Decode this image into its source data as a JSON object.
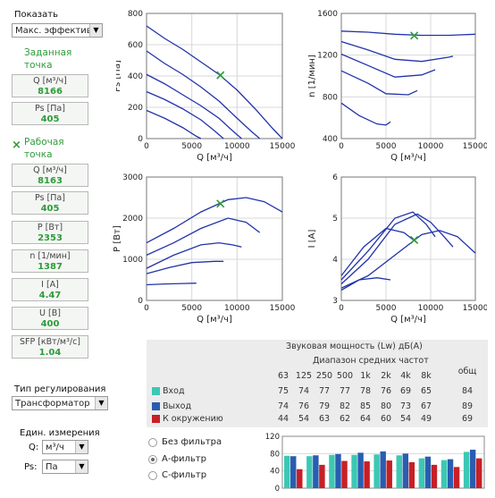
{
  "sidebar": {
    "show_label": "Показать",
    "show_select": "Макс. эффективн",
    "set_point_title_1": "Заданная",
    "set_point_title_2": "точка",
    "set_point": [
      {
        "label": "Q [м³/ч]",
        "value": "8166"
      },
      {
        "label": "Ps [Па]",
        "value": "405"
      }
    ],
    "work_point_marker": "×",
    "work_point_title_1": "Рабочая",
    "work_point_title_2": "точка",
    "work_point": [
      {
        "label": "Q [м³/ч]",
        "value": "8163"
      },
      {
        "label": "Ps [Па]",
        "value": "405"
      },
      {
        "label": "P [Вт]",
        "value": "2353"
      },
      {
        "label": "n [1/мин]",
        "value": "1387"
      },
      {
        "label": "I [А]",
        "value": "4.47"
      },
      {
        "label": "U [В]",
        "value": "400"
      },
      {
        "label": "SFP [кВт/м³/с]",
        "value": "1.04"
      }
    ],
    "regulation_label": "Тип регулирования",
    "regulation_select": "Трансформатор",
    "units_label_1": "Един. измерения",
    "units_q_label": "Q:",
    "units_q_select": "м³/ч",
    "units_ps_label": "Ps:",
    "units_ps_select": "Па"
  },
  "charts": {
    "ps": {
      "ylabel": "Ps [Па]",
      "xlabel": "Q [м³/ч]",
      "yticks": [
        "800",
        "600",
        "400",
        "200",
        "0"
      ],
      "xticks": [
        "0",
        "5000",
        "10000",
        "15000"
      ]
    },
    "n": {
      "ylabel": "n [1/мин]",
      "xlabel": "Q [м³/ч]",
      "yticks": [
        "1600",
        "1200",
        "800",
        "400"
      ],
      "xticks": [
        "0",
        "5000",
        "10000",
        "15000"
      ]
    },
    "p": {
      "ylabel": "P [Вт]",
      "xlabel": "Q [м³/ч]",
      "yticks": [
        "3000",
        "2000",
        "1000",
        "0"
      ],
      "xticks": [
        "0",
        "5000",
        "10000",
        "15000"
      ]
    },
    "i": {
      "ylabel": "I [А]",
      "xlabel": "Q [м³/ч]",
      "yticks": [
        "6",
        "5",
        "4",
        "3"
      ],
      "xticks": [
        "0",
        "5000",
        "10000",
        "15000"
      ]
    }
  },
  "sound": {
    "title": "Звуковая мощность (Lw) дБ(А)",
    "subtitle": "Диапазон средних частот",
    "freqs": [
      "63",
      "125",
      "250",
      "500",
      "1k",
      "2k",
      "4k",
      "8k"
    ],
    "total_label": "общ",
    "rows": [
      {
        "name": "Вход",
        "color": "#3cc8b4",
        "values": [
          "75",
          "74",
          "77",
          "77",
          "78",
          "76",
          "69",
          "65"
        ],
        "total": "84"
      },
      {
        "name": "Выход",
        "color": "#2a5db0",
        "values": [
          "74",
          "76",
          "79",
          "82",
          "85",
          "80",
          "73",
          "67"
        ],
        "total": "89"
      },
      {
        "name": "К окружению",
        "color": "#c81f26",
        "values": [
          "44",
          "54",
          "63",
          "62",
          "64",
          "60",
          "54",
          "49"
        ],
        "total": "69"
      }
    ]
  },
  "filters": [
    {
      "label": "Без фильтра",
      "selected": false
    },
    {
      "label": "А-фильтр",
      "selected": true
    },
    {
      "label": "С-фильтр",
      "selected": false
    }
  ],
  "bar_chart": {
    "yticks": [
      "120",
      "80",
      "40",
      "0"
    ]
  },
  "chart_data": [
    {
      "type": "line",
      "xlabel": "Q [м³/ч]",
      "ylabel": "Ps [Па]",
      "xlim": [
        0,
        15000
      ],
      "ylim": [
        0,
        800
      ],
      "series": [
        {
          "x": [
            0,
            2000,
            4000,
            6000,
            8000,
            10000,
            12000,
            14000,
            15000
          ],
          "y": [
            720,
            640,
            570,
            490,
            410,
            310,
            190,
            60,
            0
          ]
        },
        {
          "x": [
            0,
            2000,
            4000,
            6000,
            8000,
            10000,
            11500,
            12500
          ],
          "y": [
            560,
            480,
            410,
            330,
            240,
            130,
            50,
            0
          ]
        },
        {
          "x": [
            0,
            2000,
            4000,
            6000,
            8000,
            9500,
            10500
          ],
          "y": [
            410,
            350,
            280,
            210,
            130,
            50,
            0
          ]
        },
        {
          "x": [
            0,
            2000,
            4000,
            6000,
            7500,
            8500
          ],
          "y": [
            300,
            250,
            190,
            120,
            50,
            0
          ]
        },
        {
          "x": [
            0,
            2000,
            4000,
            5500,
            6000
          ],
          "y": [
            180,
            130,
            70,
            15,
            0
          ]
        }
      ],
      "marker": {
        "x": 8163,
        "y": 405
      }
    },
    {
      "type": "line",
      "xlabel": "Q [м³/ч]",
      "ylabel": "n [1/мин]",
      "xlim": [
        0,
        15000
      ],
      "ylim": [
        400,
        1600
      ],
      "series": [
        {
          "x": [
            0,
            3000,
            6000,
            9000,
            12000,
            15000
          ],
          "y": [
            1430,
            1420,
            1400,
            1390,
            1390,
            1400
          ]
        },
        {
          "x": [
            0,
            3000,
            6000,
            9000,
            12000,
            12500
          ],
          "y": [
            1330,
            1250,
            1160,
            1140,
            1180,
            1190
          ]
        },
        {
          "x": [
            0,
            3000,
            6000,
            9000,
            10500
          ],
          "y": [
            1210,
            1100,
            990,
            1010,
            1060
          ]
        },
        {
          "x": [
            0,
            3000,
            5000,
            7500,
            8500
          ],
          "y": [
            1050,
            930,
            830,
            820,
            860
          ]
        },
        {
          "x": [
            0,
            2000,
            4000,
            5000,
            5500
          ],
          "y": [
            740,
            620,
            540,
            530,
            560
          ]
        }
      ],
      "marker": {
        "x": 8163,
        "y": 1387
      }
    },
    {
      "type": "line",
      "xlabel": "Q [м³/ч]",
      "ylabel": "P [Вт]",
      "xlim": [
        0,
        15000
      ],
      "ylim": [
        0,
        3000
      ],
      "series": [
        {
          "x": [
            0,
            3000,
            6000,
            9000,
            11000,
            13000,
            15000
          ],
          "y": [
            1400,
            1750,
            2150,
            2450,
            2500,
            2400,
            2150
          ]
        },
        {
          "x": [
            0,
            3000,
            6000,
            9000,
            11000,
            12500
          ],
          "y": [
            1100,
            1400,
            1750,
            2000,
            1900,
            1650
          ]
        },
        {
          "x": [
            0,
            3000,
            6000,
            8000,
            9500,
            10500
          ],
          "y": [
            780,
            1100,
            1350,
            1400,
            1350,
            1300
          ]
        },
        {
          "x": [
            0,
            2500,
            5000,
            7500,
            8500
          ],
          "y": [
            650,
            800,
            920,
            950,
            950
          ]
        },
        {
          "x": [
            0,
            2000,
            4000,
            5500
          ],
          "y": [
            380,
            400,
            410,
            420
          ]
        }
      ],
      "marker": {
        "x": 8163,
        "y": 2353
      }
    },
    {
      "type": "line",
      "xlabel": "Q [м³/ч]",
      "ylabel": "I [А]",
      "xlim": [
        0,
        15000
      ],
      "ylim": [
        3,
        6
      ],
      "series": [
        {
          "x": [
            0,
            3000,
            6000,
            9000,
            11000,
            13000,
            15000
          ],
          "y": [
            3.3,
            3.6,
            4.1,
            4.6,
            4.7,
            4.55,
            4.15
          ]
        },
        {
          "x": [
            0,
            3000,
            6000,
            8500,
            10000,
            11500,
            12500
          ],
          "y": [
            3.4,
            4.0,
            4.85,
            5.1,
            4.9,
            4.55,
            4.3
          ]
        },
        {
          "x": [
            0,
            3000,
            6000,
            8000,
            9500,
            10500
          ],
          "y": [
            3.5,
            4.2,
            5.0,
            5.15,
            4.85,
            4.55
          ]
        },
        {
          "x": [
            0,
            2500,
            5000,
            7000,
            8500
          ],
          "y": [
            3.6,
            4.3,
            4.75,
            4.65,
            4.4
          ]
        },
        {
          "x": [
            0,
            2000,
            4000,
            5500
          ],
          "y": [
            3.25,
            3.5,
            3.55,
            3.5
          ]
        }
      ],
      "marker": {
        "x": 8163,
        "y": 4.47
      }
    },
    {
      "type": "bar",
      "categories": [
        "63",
        "125",
        "250",
        "500",
        "1k",
        "2k",
        "4k",
        "8k",
        "общ"
      ],
      "ylim": [
        0,
        120
      ],
      "series": [
        {
          "name": "Вход",
          "values": [
            75,
            74,
            77,
            77,
            78,
            76,
            69,
            65,
            84
          ]
        },
        {
          "name": "Выход",
          "values": [
            74,
            76,
            79,
            82,
            85,
            80,
            73,
            67,
            89
          ]
        },
        {
          "name": "К окружению",
          "values": [
            44,
            54,
            63,
            62,
            64,
            60,
            54,
            49,
            69
          ]
        }
      ]
    }
  ]
}
